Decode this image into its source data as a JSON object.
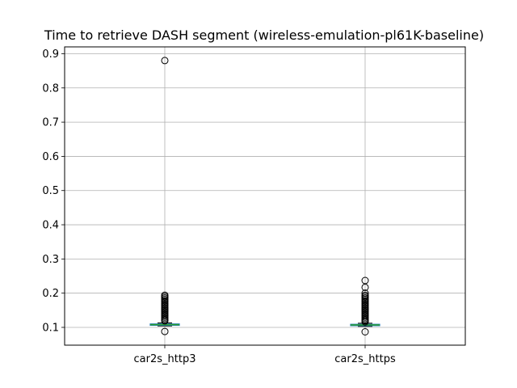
{
  "chart_data": {
    "type": "box",
    "title": "Time to retrieve DASH segment (wireless-emulation-pl61K-baseline)",
    "xlabel": "",
    "ylabel": "",
    "categories": [
      "car2s_http3",
      "car2s_https"
    ],
    "ylim": [
      0.048,
      0.92
    ],
    "yticks": [
      0.1,
      0.2,
      0.3,
      0.4,
      0.5,
      0.6,
      0.7,
      0.8,
      0.9
    ],
    "ytick_labels": [
      "0.1",
      "0.2",
      "0.3",
      "0.4",
      "0.5",
      "0.6",
      "0.7",
      "0.8",
      "0.9"
    ],
    "grid": true,
    "legend": "none",
    "colors": {
      "box": "#1f77b4",
      "median": "#2ca02c",
      "whisker": "#000000",
      "flier_edge": "#000000",
      "grid": "#b0b0b0"
    },
    "series": [
      {
        "category": "car2s_http3",
        "whislo": 0.104,
        "q1": 0.106,
        "median": 0.108,
        "q3": 0.11,
        "whishi": 0.113,
        "fliers": [
          0.088,
          0.119,
          0.122,
          0.126,
          0.13,
          0.134,
          0.138,
          0.142,
          0.146,
          0.15,
          0.154,
          0.158,
          0.162,
          0.166,
          0.17,
          0.174,
          0.178,
          0.182,
          0.186,
          0.19,
          0.194,
          0.88
        ]
      },
      {
        "category": "car2s_https",
        "whislo": 0.103,
        "q1": 0.105,
        "median": 0.107,
        "q3": 0.109,
        "whishi": 0.112,
        "fliers": [
          0.087,
          0.116,
          0.119,
          0.122,
          0.126,
          0.13,
          0.134,
          0.138,
          0.142,
          0.146,
          0.15,
          0.154,
          0.158,
          0.162,
          0.166,
          0.17,
          0.174,
          0.178,
          0.182,
          0.186,
          0.19,
          0.194,
          0.2,
          0.217,
          0.237
        ]
      }
    ]
  }
}
